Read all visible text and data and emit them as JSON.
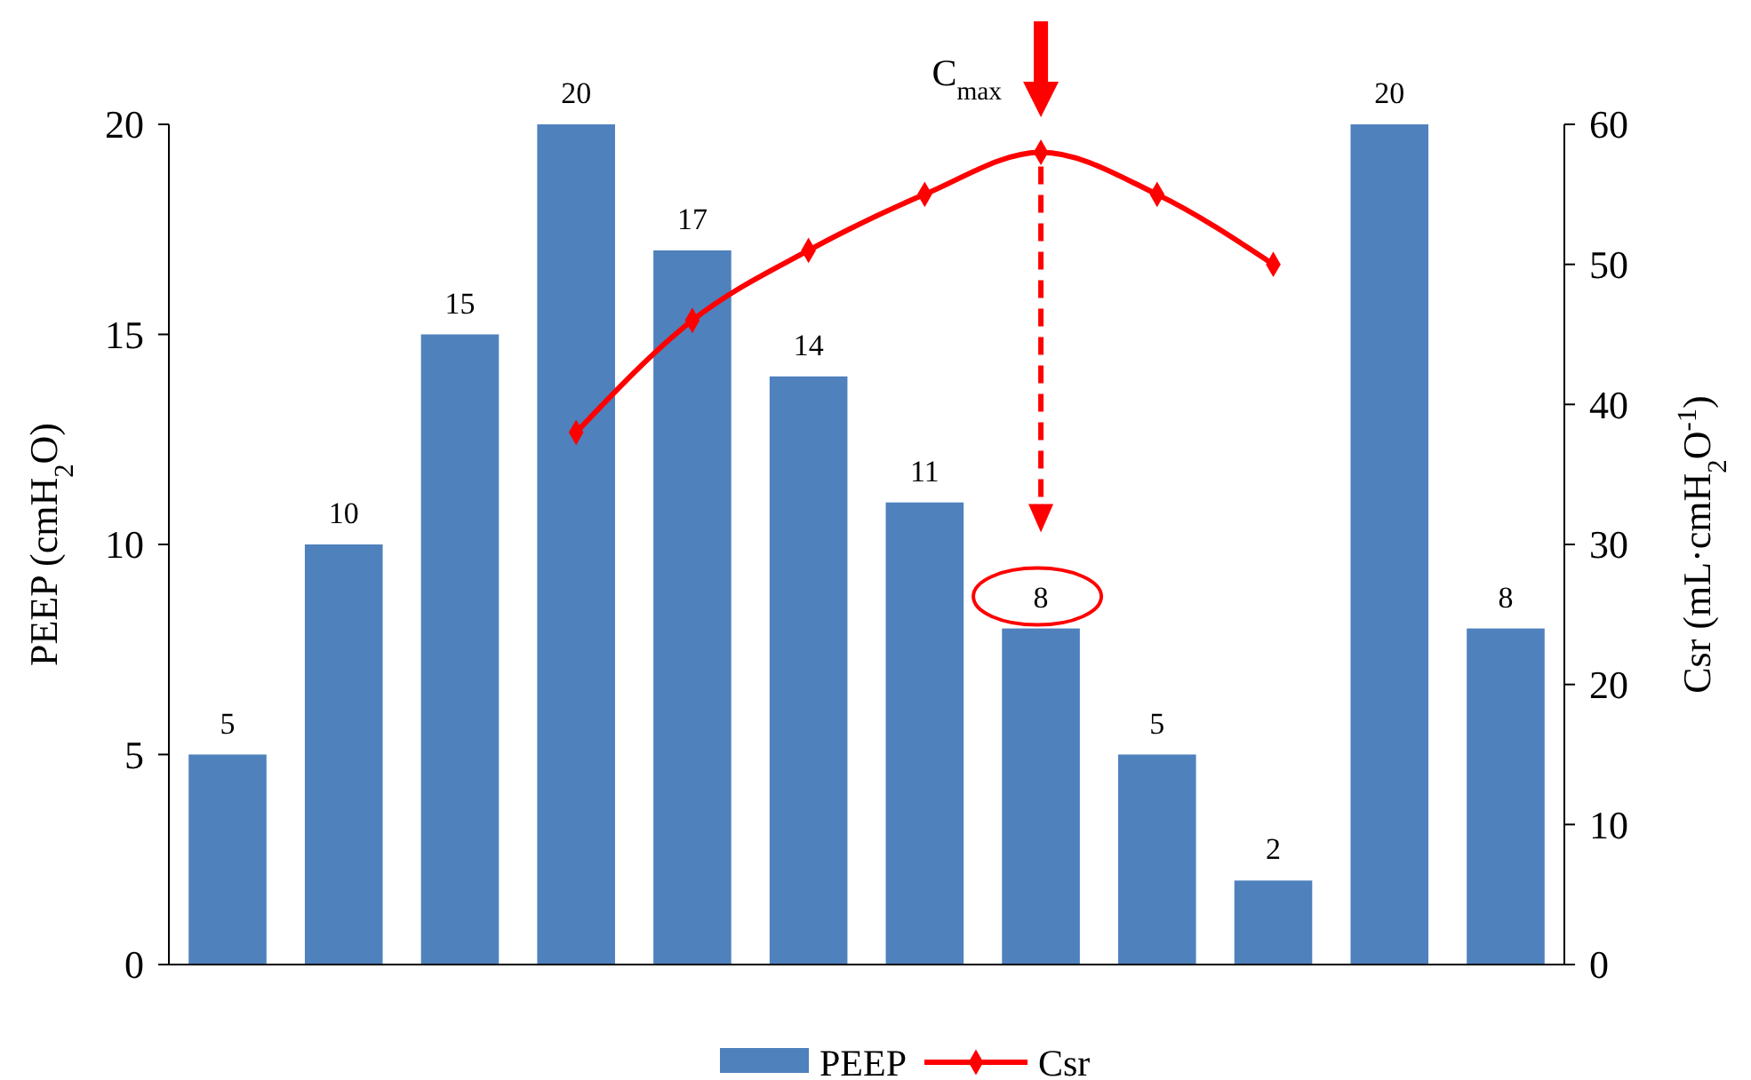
{
  "chart_data": {
    "type": "bar",
    "categories": [
      null,
      null,
      null,
      null,
      null,
      null,
      null,
      null,
      null,
      null,
      null,
      null
    ],
    "ylabel": "PEEP (cmH$_{2}$O)",
    "y2label": "Csr (mL·cmH$_{2}$O$^{-1}$)",
    "ylim": [
      0,
      20
    ],
    "yticks": [
      0,
      5,
      10,
      15,
      20
    ],
    "y2lim": [
      0,
      60
    ],
    "y2ticks": [
      0,
      10,
      20,
      30,
      40,
      50,
      60
    ],
    "series": [
      {
        "name": "PEEP",
        "color": "#4f81bd",
        "values": [
          5,
          10,
          15,
          20,
          17,
          14,
          11,
          8,
          5,
          2,
          20,
          8
        ],
        "value_labels": [
          "5",
          "10",
          "15",
          "20",
          "17",
          "14",
          "11",
          "8",
          "5",
          "2",
          "20",
          "8"
        ]
      },
      {
        "name": "Csr",
        "type": "line",
        "axis": "y2",
        "color": "#ff0000",
        "marker": "diamond",
        "values": [
          null,
          null,
          null,
          38,
          46,
          51,
          55,
          58,
          55,
          50,
          null,
          null
        ]
      }
    ],
    "annotations": [
      "C$_{max}$"
    ],
    "legend": "bottom",
    "grid": false
  }
}
